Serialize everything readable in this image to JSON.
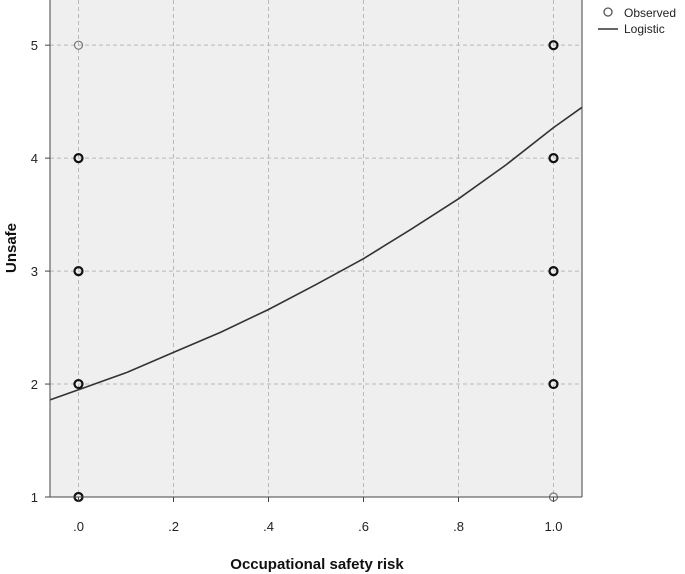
{
  "chart_data": {
    "type": "scatter",
    "xlabel": "Occupational safety risk",
    "ylabel": "Unsafe",
    "xlim": [
      -0.06,
      1.06
    ],
    "ylim": [
      1,
      5.4
    ],
    "xticks": [
      {
        "value": 0.0,
        "label": ".0"
      },
      {
        "value": 0.2,
        "label": ".2"
      },
      {
        "value": 0.4,
        "label": ".4"
      },
      {
        "value": 0.6,
        "label": ".6"
      },
      {
        "value": 0.8,
        "label": ".8"
      },
      {
        "value": 1.0,
        "label": "1.0"
      }
    ],
    "yticks": [
      {
        "value": 1,
        "label": "1"
      },
      {
        "value": 2,
        "label": "2"
      },
      {
        "value": 3,
        "label": "3"
      },
      {
        "value": 4,
        "label": "4"
      },
      {
        "value": 5,
        "label": "5"
      }
    ],
    "grid": true,
    "legend_position": "top-right",
    "series": [
      {
        "name": "Observed",
        "kind": "points",
        "points": [
          {
            "x": 0,
            "y": 5,
            "weight": "light"
          },
          {
            "x": 0,
            "y": 4,
            "weight": "bold"
          },
          {
            "x": 0,
            "y": 3,
            "weight": "bold"
          },
          {
            "x": 0,
            "y": 2,
            "weight": "bold"
          },
          {
            "x": 0,
            "y": 1,
            "weight": "bold"
          },
          {
            "x": 1,
            "y": 5,
            "weight": "bold"
          },
          {
            "x": 1,
            "y": 4,
            "weight": "bold"
          },
          {
            "x": 1,
            "y": 3,
            "weight": "bold"
          },
          {
            "x": 1,
            "y": 2,
            "weight": "bold"
          },
          {
            "x": 1,
            "y": 1,
            "weight": "light"
          }
        ]
      },
      {
        "name": "Logistic",
        "kind": "line",
        "x": [
          -0.06,
          0.0,
          0.1,
          0.2,
          0.3,
          0.4,
          0.5,
          0.6,
          0.7,
          0.8,
          0.9,
          1.0,
          1.06
        ],
        "y": [
          1.86,
          1.95,
          2.1,
          2.28,
          2.46,
          2.66,
          2.88,
          3.11,
          3.37,
          3.64,
          3.94,
          4.27,
          4.45
        ]
      }
    ],
    "colors": {
      "plot_background": "#efefef",
      "grid": "#b9b9b9",
      "axis": "#444444",
      "line": "#333333",
      "marker_bold": "#111111",
      "marker_light": "#777777"
    }
  }
}
